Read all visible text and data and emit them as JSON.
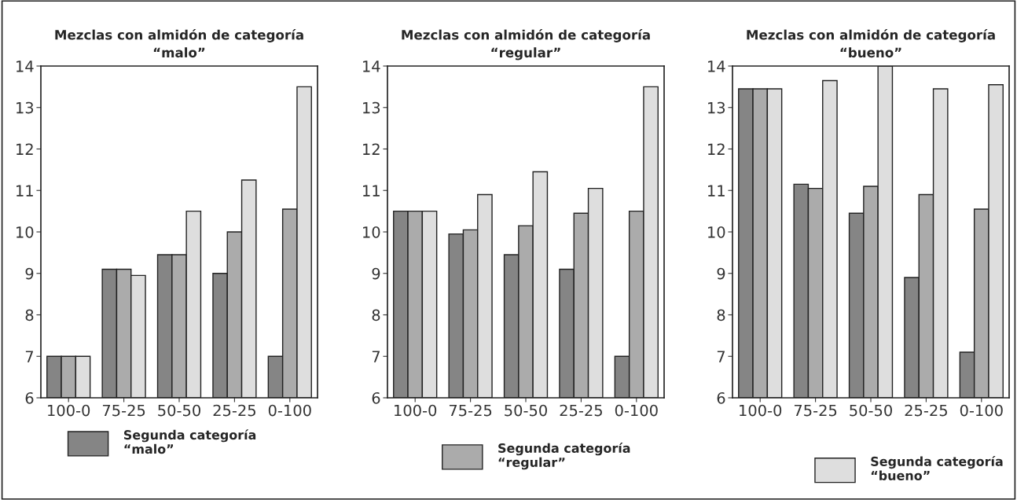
{
  "chart_data": [
    {
      "type": "bar",
      "title": "Mezclas con almidón de categoría\n“malo”",
      "categories": [
        "100-0",
        "75-25",
        "50-50",
        "25-25",
        "0-100"
      ],
      "ylim": [
        6,
        14
      ],
      "yticks": [
        6,
        7,
        8,
        9,
        10,
        11,
        12,
        13,
        14
      ],
      "grid": false,
      "legend": "bottom",
      "series": [
        {
          "name": "Segunda categoría\n“malo”",
          "color": "#858585",
          "values": [
            7.0,
            9.1,
            9.45,
            9.0,
            7.0
          ]
        },
        {
          "color": "#ababab",
          "values": [
            7.0,
            9.1,
            9.45,
            10.0,
            10.55
          ]
        },
        {
          "color": "#dedede",
          "values": [
            7.0,
            8.95,
            10.5,
            11.25,
            13.5
          ]
        }
      ]
    },
    {
      "type": "bar",
      "title": "Mezclas con almidón de categoría\n“regular”",
      "categories": [
        "100-0",
        "75-25",
        "50-50",
        "25-25",
        "0-100"
      ],
      "ylim": [
        6,
        14
      ],
      "yticks": [
        6,
        7,
        8,
        9,
        10,
        11,
        12,
        13,
        14
      ],
      "grid": false,
      "legend": "bottom",
      "series": [
        {
          "color": "#858585",
          "values": [
            10.5,
            9.95,
            9.45,
            9.1,
            7.0
          ]
        },
        {
          "name": "Segunda categoría\n“regular”",
          "color": "#ababab",
          "values": [
            10.5,
            10.05,
            10.15,
            10.45,
            10.5
          ]
        },
        {
          "color": "#dedede",
          "values": [
            10.5,
            10.9,
            11.45,
            11.05,
            13.5
          ]
        }
      ]
    },
    {
      "type": "bar",
      "title": "Mezclas con almidón de categoría\n“bueno”",
      "categories": [
        "100-0",
        "75-25",
        "50-50",
        "25-25",
        "0-100"
      ],
      "ylim": [
        6,
        14
      ],
      "yticks": [
        6,
        7,
        8,
        9,
        10,
        11,
        12,
        13,
        14
      ],
      "grid": false,
      "legend": "bottom",
      "series": [
        {
          "color": "#858585",
          "values": [
            13.45,
            11.15,
            10.45,
            8.9,
            7.1
          ]
        },
        {
          "color": "#ababab",
          "values": [
            13.45,
            11.05,
            11.1,
            10.9,
            10.55
          ]
        },
        {
          "name": "Segunda categoría\n“bueno”",
          "color": "#dedede",
          "values": [
            13.45,
            13.65,
            14.0,
            13.45,
            13.55
          ]
        }
      ]
    }
  ]
}
